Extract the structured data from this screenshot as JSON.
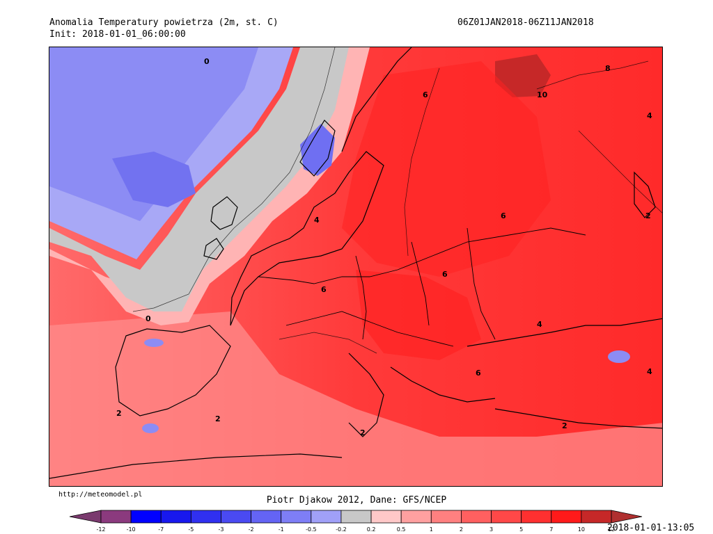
{
  "header": {
    "title": "Anomalia Temperatury powietrza (2m, st. C)",
    "init": "Init: 2018-01-01_06:00:00",
    "period": "06Z01JAN2018-06Z11JAN2018"
  },
  "footer": {
    "website": "http://meteomodel.pl",
    "credit": "Piotr Djakow 2012, Dane: GFS/NCEP",
    "timestamp": "2018-01-01-13:05"
  },
  "map": {
    "contour_labels": [
      "0",
      "6",
      "8",
      "10",
      "4",
      "2",
      "6",
      "6",
      "6",
      "0",
      "4",
      "6",
      "2",
      "2",
      "2",
      "2",
      "4",
      "4"
    ]
  },
  "legend": {
    "ticks": [
      "-12",
      "-10",
      "-7",
      "-5",
      "-3",
      "-2",
      "-1",
      "-0.5",
      "-0.2",
      "0.2",
      "0.5",
      "1",
      "2",
      "3",
      "5",
      "7",
      "10",
      "12"
    ],
    "colors": [
      "#8b3a7e",
      "#0000ff",
      "#1818ee",
      "#3030f0",
      "#4a4af2",
      "#6464f4",
      "#7e7ef6",
      "#a0a0f8",
      "#c8c8c8",
      "#ffc8c8",
      "#ffa0a0",
      "#ff8080",
      "#ff6060",
      "#ff4848",
      "#ff3030",
      "#ff1a1a",
      "#c62828"
    ],
    "low_color": "#7a3a6e",
    "high_color": "#b03030"
  }
}
